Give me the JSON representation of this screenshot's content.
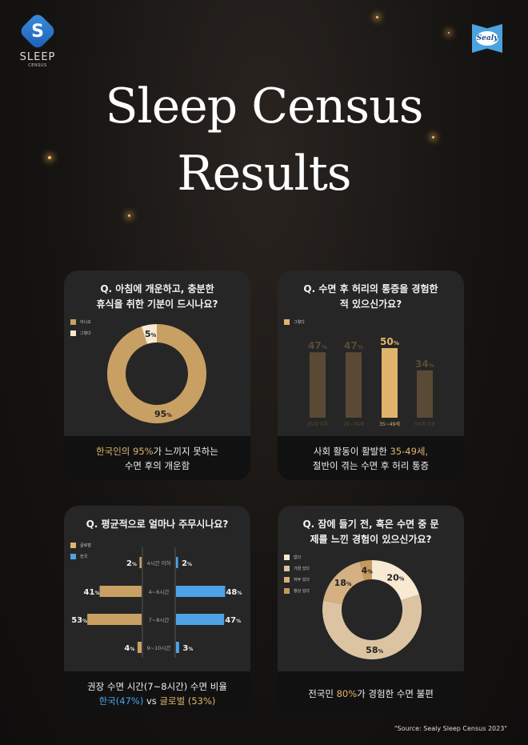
{
  "header": {
    "logo_left": "SLEEP",
    "logo_left_sub": "CENSUS",
    "logo_right": "Sealy",
    "title_line1": "Sleep Census",
    "title_line2": "Results"
  },
  "colors": {
    "gold": "#e0b46c",
    "blue": "#4da3e6",
    "cream": "#f7e9d2",
    "dim_bar": "#5a4a35"
  },
  "chart_data": [
    {
      "type": "pie",
      "donut": true,
      "title": "Q. 아침에 개운하고, 충분한 휴식을 취한 기분이 드시나요?",
      "categories": [
        "아니오",
        "그렇다"
      ],
      "values": [
        95,
        5
      ],
      "labels": [
        "95",
        "5"
      ],
      "unit": "%",
      "colors": [
        "#c9a063",
        "#f7e9d2"
      ],
      "legend": "top-left",
      "caption_pre": "한국인의 95%",
      "caption_post": "가 느끼지 못하는",
      "caption_line2": "수면 후의 개운함"
    },
    {
      "type": "bar",
      "title": "Q. 수면 후 허리의 통증을 경험한 적 있으신가요?",
      "series": [
        {
          "name": "그렇다",
          "values": [
            47,
            47,
            50,
            34
          ]
        }
      ],
      "categories": [
        "25세 이하",
        "25~34세",
        "35~49세",
        "50세 이상"
      ],
      "highlight": "35~49세",
      "labels": [
        "47",
        "47",
        "50",
        "34"
      ],
      "unit": "%",
      "legend": "top-left",
      "caption_pre": "사회 활동이 활발한 ",
      "caption_hl": "35-49세,",
      "caption_line2": "절반이 겪는 수면 후 허리 통증"
    },
    {
      "type": "bar",
      "orientation": "horizontal-butterfly",
      "title": "Q. 평균적으로 얼마나 주무시나요?",
      "categories": [
        "4시간 이하",
        "4~6시간",
        "7~8시간",
        "9~10시간"
      ],
      "series": [
        {
          "name": "글로벌",
          "values": [
            2,
            41,
            53,
            4
          ],
          "labels": [
            "2",
            "41",
            "53",
            "4"
          ]
        },
        {
          "name": "한국",
          "values": [
            2,
            48,
            47,
            3
          ],
          "labels": [
            "2",
            "48",
            "47",
            "3"
          ]
        }
      ],
      "unit": "%",
      "legend": "top-left",
      "caption_line1": "권장 수면 시간(7~8시간) 수면 비율",
      "caption_kr": "한국(47%)",
      "caption_vs": " vs ",
      "caption_gl": "글로벌 (53%)"
    },
    {
      "type": "pie",
      "donut": true,
      "title": "Q. 잠에 들기 전, 혹은 수면 중 문제를 느낀 경험이 있으신가요?",
      "categories": [
        "없다",
        "가끔 있다",
        "자주 있다",
        "항상 있다"
      ],
      "values": [
        20,
        58,
        18,
        4
      ],
      "labels": [
        "20",
        "58",
        "18",
        "4"
      ],
      "unit": "%",
      "colors": [
        "#f7e9d2",
        "#dcc4a2",
        "#d4b083",
        "#c49a5c"
      ],
      "legend": "top-left",
      "caption_pre": "전국민 ",
      "caption_hl": "80%",
      "caption_post": "가 경험한 수면 불편"
    }
  ],
  "source": "\"Source: Sealy Sleep Census 2023\""
}
